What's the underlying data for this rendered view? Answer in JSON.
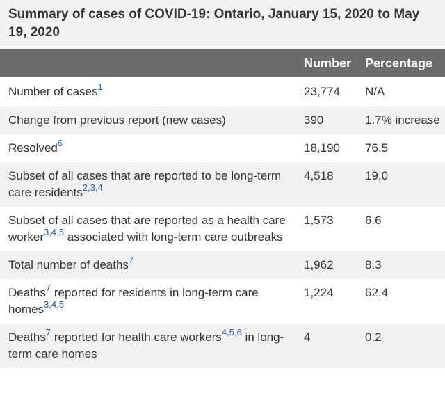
{
  "caption": "Summary of cases of COVID-19: Ontario, January 15, 2020 to May 19, 2020",
  "headers": {
    "label": "",
    "number": "Number",
    "percentage": "Percentage"
  },
  "rows": [
    {
      "label_a": "Number of cases",
      "refs": [
        "1"
      ],
      "label_b": "",
      "number": "23,774",
      "percentage": "N/A"
    },
    {
      "label_a": "Change from previous report (new cases)",
      "refs": [],
      "label_b": "",
      "number": "390",
      "percentage": "1.7% increase"
    },
    {
      "label_a": "Resolved",
      "refs": [
        "6"
      ],
      "label_b": "",
      "number": "18,190",
      "percentage": "76.5"
    },
    {
      "label_a": "Subset of all cases that are reported to be long-term care residents",
      "refs": [
        "2",
        "3",
        "4"
      ],
      "label_b": "",
      "number": "4,518",
      "percentage": "19.0"
    },
    {
      "label_a": "Subset of all cases that are reported as a health care worker",
      "refs": [
        "3",
        "4",
        "5"
      ],
      "label_b": " associated with long-term care outbreaks",
      "number": "1,573",
      "percentage": "6.6"
    },
    {
      "label_a": "Total number of deaths",
      "refs": [
        "7"
      ],
      "label_b": "",
      "number": "1,962",
      "percentage": "8.3"
    },
    {
      "label_a": "Deaths",
      "refs": [
        "7"
      ],
      "label_b": " reported for residents in long-term care homes",
      "refs2": [
        "3",
        "4",
        "5"
      ],
      "number": "1,224",
      "percentage": "62.4"
    },
    {
      "label_a": "Deaths",
      "refs": [
        "7"
      ],
      "label_b": " reported for health care workers",
      "refs2": [
        "4",
        "5",
        "6"
      ],
      "label_c": " in long-term care homes",
      "number": "4",
      "percentage": "0.2"
    }
  ],
  "colors": {
    "header_bg": "#6b6b6b",
    "stripe_bg": "#f2f2f2",
    "link": "#2a5db0",
    "text": "#333333"
  }
}
